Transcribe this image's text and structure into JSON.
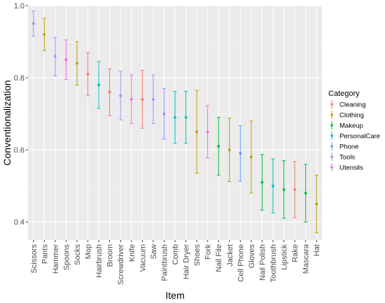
{
  "chart_data": {
    "type": "errorbar",
    "xlabel": "Item",
    "ylabel": "Conventionalization",
    "ylim": [
      0.35,
      1.0
    ],
    "yticks": [
      0.4,
      0.6,
      0.8,
      1.0
    ],
    "y_tick_labels": [
      "0.4",
      "0.6",
      "0.8",
      "1.0"
    ],
    "grid": true,
    "legend": {
      "title": "Category",
      "placement": "right",
      "entries": [
        {
          "name": "Cleaning",
          "color": "#F8766D"
        },
        {
          "name": "Clothing",
          "color": "#B79F00"
        },
        {
          "name": "Makeup",
          "color": "#00BA38"
        },
        {
          "name": "PersonalCare",
          "color": "#00BFC4"
        },
        {
          "name": "Phone",
          "color": "#619CFF"
        },
        {
          "name": "Tools",
          "color": "#A58AFF"
        },
        {
          "name": "Utensils",
          "color": "#F564E3"
        }
      ]
    },
    "points": [
      {
        "item": "Scissors",
        "category": "Tools",
        "y": 0.95,
        "ymin": 0.915,
        "ymax": 0.985
      },
      {
        "item": "Pants",
        "category": "Clothing",
        "y": 0.92,
        "ymin": 0.875,
        "ymax": 0.965
      },
      {
        "item": "Hammer",
        "category": "Tools",
        "y": 0.86,
        "ymin": 0.805,
        "ymax": 0.912
      },
      {
        "item": "Spoons",
        "category": "Utensils",
        "y": 0.85,
        "ymin": 0.795,
        "ymax": 0.905
      },
      {
        "item": "Socks",
        "category": "Clothing",
        "y": 0.84,
        "ymin": 0.78,
        "ymax": 0.9
      },
      {
        "item": "Mop",
        "category": "Cleaning",
        "y": 0.81,
        "ymin": 0.75,
        "ymax": 0.87
      },
      {
        "item": "Hairbrush",
        "category": "PersonalCare",
        "y": 0.78,
        "ymin": 0.715,
        "ymax": 0.845
      },
      {
        "item": "Broom",
        "category": "Cleaning",
        "y": 0.76,
        "ymin": 0.695,
        "ymax": 0.825
      },
      {
        "item": "Screwdriver",
        "category": "Tools",
        "y": 0.75,
        "ymin": 0.683,
        "ymax": 0.818
      },
      {
        "item": "Knife",
        "category": "Utensils",
        "y": 0.74,
        "ymin": 0.673,
        "ymax": 0.808
      },
      {
        "item": "Vacuum",
        "category": "Cleaning",
        "y": 0.74,
        "ymin": 0.66,
        "ymax": 0.82
      },
      {
        "item": "Saw",
        "category": "Tools",
        "y": 0.74,
        "ymin": 0.673,
        "ymax": 0.808
      },
      {
        "item": "Paintbrush",
        "category": "Tools",
        "y": 0.7,
        "ymin": 0.63,
        "ymax": 0.77
      },
      {
        "item": "Comb",
        "category": "PersonalCare",
        "y": 0.69,
        "ymin": 0.618,
        "ymax": 0.762
      },
      {
        "item": "Hair Dryer",
        "category": "PersonalCare",
        "y": 0.69,
        "ymin": 0.618,
        "ymax": 0.762
      },
      {
        "item": "Shoes",
        "category": "Clothing",
        "y": 0.65,
        "ymin": 0.535,
        "ymax": 0.765
      },
      {
        "item": "Fork",
        "category": "Utensils",
        "y": 0.65,
        "ymin": 0.577,
        "ymax": 0.723
      },
      {
        "item": "Nail File",
        "category": "Makeup",
        "y": 0.61,
        "ymin": 0.53,
        "ymax": 0.69
      },
      {
        "item": "Jacket",
        "category": "Clothing",
        "y": 0.6,
        "ymin": 0.512,
        "ymax": 0.688
      },
      {
        "item": "Cell Phone",
        "category": "Phone",
        "y": 0.59,
        "ymin": 0.513,
        "ymax": 0.667
      },
      {
        "item": "Gloves",
        "category": "Clothing",
        "y": 0.58,
        "ymin": 0.48,
        "ymax": 0.68
      },
      {
        "item": "Nail Polish",
        "category": "Makeup",
        "y": 0.51,
        "ymin": 0.433,
        "ymax": 0.587
      },
      {
        "item": "Toothbrush",
        "category": "PersonalCare",
        "y": 0.5,
        "ymin": 0.425,
        "ymax": 0.575
      },
      {
        "item": "Lipstick",
        "category": "Makeup",
        "y": 0.49,
        "ymin": 0.41,
        "ymax": 0.57
      },
      {
        "item": "Rake",
        "category": "Cleaning",
        "y": 0.49,
        "ymin": 0.412,
        "ymax": 0.568
      },
      {
        "item": "Mascara",
        "category": "Makeup",
        "y": 0.48,
        "ymin": 0.4,
        "ymax": 0.56
      },
      {
        "item": "Hat",
        "category": "Clothing",
        "y": 0.45,
        "ymin": 0.37,
        "ymax": 0.53
      }
    ]
  }
}
